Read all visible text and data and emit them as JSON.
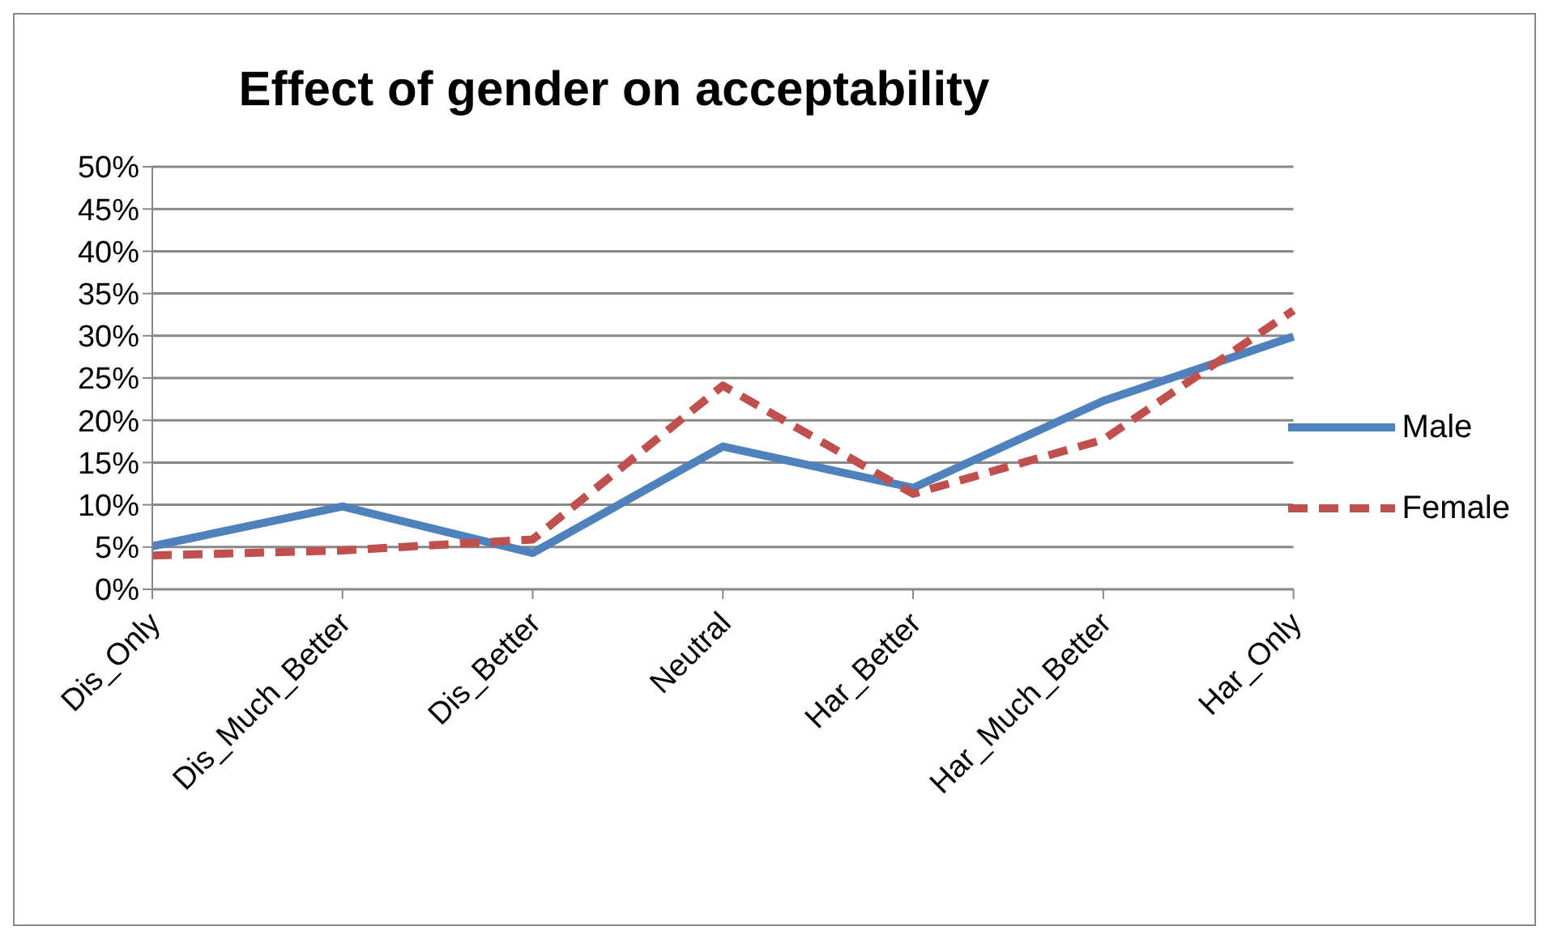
{
  "chart_data": {
    "type": "line",
    "title": "Effect of gender on acceptability",
    "categories": [
      "Dis_Only",
      "Dis_Much_Better",
      "Dis_Better",
      "Neutral",
      "Har_Better",
      "Har_Much_Better",
      "Har_Only"
    ],
    "series": [
      {
        "name": "Male",
        "color": "#4f81bd",
        "line_style": "solid",
        "values": [
          5.1,
          9.8,
          4.3,
          16.9,
          12.0,
          22.3,
          29.9
        ]
      },
      {
        "name": "Female",
        "color": "#c0504d",
        "line_style": "dashed",
        "values": [
          4.0,
          4.6,
          5.9,
          24.1,
          11.3,
          17.7,
          33.0
        ]
      }
    ],
    "ylim": [
      0,
      50
    ],
    "yticks": [
      {
        "value": 0,
        "label": "0%"
      },
      {
        "value": 5,
        "label": "5%"
      },
      {
        "value": 10,
        "label": "10%"
      },
      {
        "value": 15,
        "label": "15%"
      },
      {
        "value": 20,
        "label": "20%"
      },
      {
        "value": 25,
        "label": "25%"
      },
      {
        "value": 30,
        "label": "30%"
      },
      {
        "value": 35,
        "label": "35%"
      },
      {
        "value": 40,
        "label": "40%"
      },
      {
        "value": 45,
        "label": "45%"
      },
      {
        "value": 50,
        "label": "50%"
      }
    ],
    "grid": "y",
    "legend": "right",
    "marker": "none"
  }
}
